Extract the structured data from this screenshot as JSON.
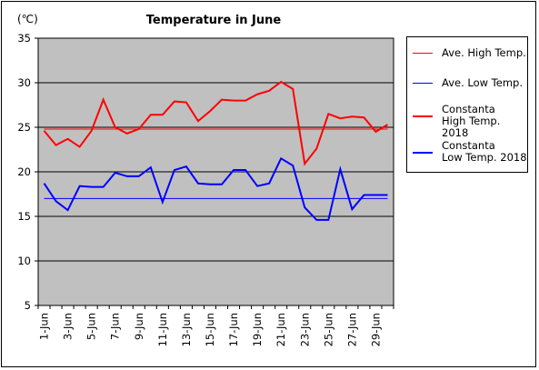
{
  "chart_data": {
    "type": "line",
    "title": "Temperature in June",
    "unit_label": "(℃)",
    "ylim": [
      5,
      35
    ],
    "yticks": [
      "35",
      "30",
      "25",
      "20",
      "15",
      "10",
      "5"
    ],
    "ytick_values": [
      35,
      30,
      25,
      20,
      15,
      10,
      5
    ],
    "categories": [
      "1-Jun",
      "2-Jun",
      "3-Jun",
      "4-Jun",
      "5-Jun",
      "6-Jun",
      "7-Jun",
      "8-Jun",
      "9-Jun",
      "10-Jun",
      "11-Jun",
      "12-Jun",
      "13-Jun",
      "14-Jun",
      "15-Jun",
      "16-Jun",
      "17-Jun",
      "18-Jun",
      "19-Jun",
      "20-Jun",
      "21-Jun",
      "22-Jun",
      "23-Jun",
      "24-Jun",
      "25-Jun",
      "26-Jun",
      "27-Jun",
      "28-Jun",
      "29-Jun",
      "30-Jun"
    ],
    "xtick_labels": [
      "1-Jun",
      "3-Jun",
      "5-Jun",
      "7-Jun",
      "9-Jun",
      "11-Jun",
      "13-Jun",
      "15-Jun",
      "17-Jun",
      "19-Jun",
      "21-Jun",
      "23-Jun",
      "25-Jun",
      "27-Jun",
      "29-Jun"
    ],
    "xtick_indices": [
      0,
      2,
      4,
      6,
      8,
      10,
      12,
      14,
      16,
      18,
      20,
      22,
      24,
      26,
      28
    ],
    "grid": true,
    "plot_background": "#c0c0c0",
    "legend_position": "right",
    "series": [
      {
        "name": "Ave. High Temp.",
        "color": "#ff0000",
        "width": 1,
        "values": [
          24.8,
          24.8,
          24.8,
          24.8,
          24.8,
          24.8,
          24.8,
          24.8,
          24.8,
          24.8,
          24.8,
          24.8,
          24.8,
          24.8,
          24.8,
          24.8,
          24.8,
          24.8,
          24.8,
          24.8,
          24.8,
          24.8,
          24.8,
          24.8,
          24.8,
          24.8,
          24.8,
          24.8,
          24.8,
          24.8
        ]
      },
      {
        "name": "Ave. Low Temp.",
        "color": "#0000ff",
        "width": 1,
        "values": [
          17.0,
          17.0,
          17.0,
          17.0,
          17.0,
          17.0,
          17.0,
          17.0,
          17.0,
          17.0,
          17.0,
          17.0,
          17.0,
          17.0,
          17.0,
          17.0,
          17.0,
          17.0,
          17.0,
          17.0,
          17.0,
          17.0,
          17.0,
          17.0,
          17.0,
          17.0,
          17.0,
          17.0,
          17.0,
          17.0
        ]
      },
      {
        "name": "Constanta\nHigh Temp. 2018",
        "color": "#ff0000",
        "width": 2,
        "values": [
          24.6,
          23.0,
          23.7,
          22.8,
          24.6,
          28.1,
          25.0,
          24.3,
          24.8,
          26.4,
          26.4,
          27.9,
          27.8,
          25.7,
          26.8,
          28.1,
          28.0,
          28.0,
          28.7,
          29.1,
          30.1,
          29.3,
          20.9,
          22.6,
          26.5,
          26.0,
          26.2,
          26.1,
          24.5,
          25.3
        ]
      },
      {
        "name": "Constanta\nLow Temp. 2018",
        "color": "#0000ff",
        "width": 2,
        "values": [
          18.7,
          16.7,
          15.7,
          18.4,
          18.3,
          18.3,
          19.9,
          19.5,
          19.5,
          20.5,
          16.6,
          20.2,
          20.6,
          18.7,
          18.6,
          18.6,
          20.2,
          20.2,
          18.4,
          18.7,
          21.5,
          20.7,
          16.0,
          14.6,
          14.6,
          20.3,
          15.8,
          17.4,
          17.4,
          17.4
        ]
      }
    ]
  }
}
